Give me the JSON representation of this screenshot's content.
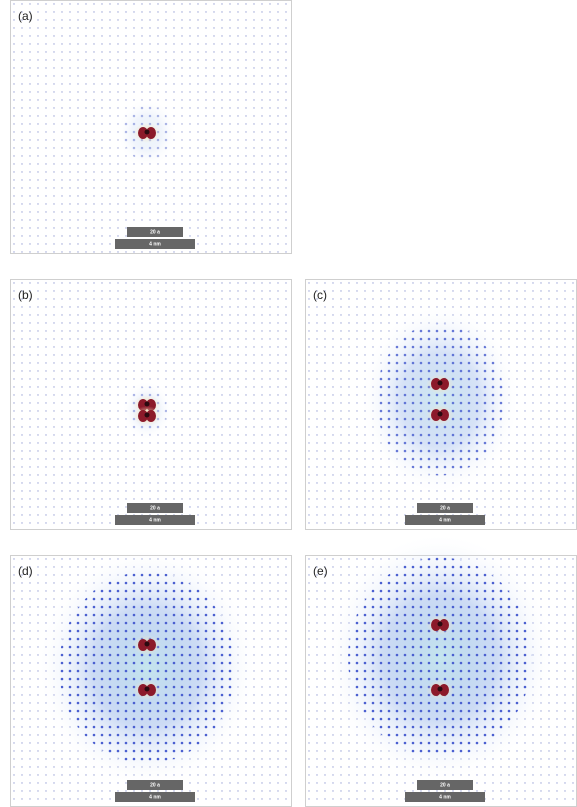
{
  "panels": [
    {
      "label": "(a)",
      "scale_top": "20 a",
      "scale_bottom": "4 nm"
    },
    {
      "label": "(b)",
      "scale_top": "20 a",
      "scale_bottom": "4 nm"
    },
    {
      "label": "(c)",
      "scale_top": "20 a",
      "scale_bottom": "4 nm"
    },
    {
      "label": "(d)",
      "scale_top": "20 a",
      "scale_bottom": "4 nm"
    },
    {
      "label": "(e)",
      "scale_top": "20 a",
      "scale_bottom": "4 nm"
    }
  ]
}
